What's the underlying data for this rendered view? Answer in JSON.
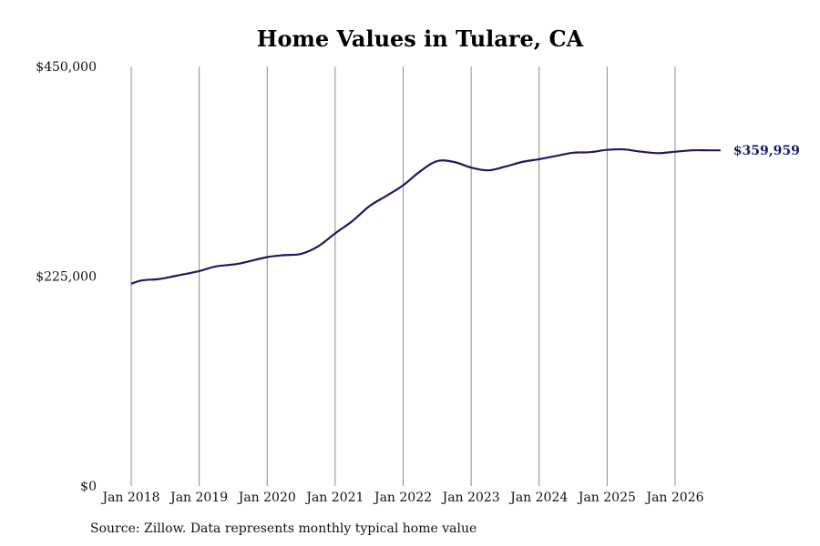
{
  "chart_data": {
    "type": "line",
    "title": "Home Values in Tulare, CA",
    "xlabel": "",
    "ylabel": "",
    "ylim": [
      0,
      450000
    ],
    "y_ticks": [
      {
        "value": 0,
        "label": "$0"
      },
      {
        "value": 225000,
        "label": "$225,000"
      },
      {
        "value": 450000,
        "label": "$450,000"
      }
    ],
    "x_ticks": [
      {
        "value": "2018-01",
        "label": "Jan 2018"
      },
      {
        "value": "2019-01",
        "label": "Jan 2019"
      },
      {
        "value": "2020-01",
        "label": "Jan 2020"
      },
      {
        "value": "2021-01",
        "label": "Jan 2021"
      },
      {
        "value": "2022-01",
        "label": "Jan 2022"
      },
      {
        "value": "2023-01",
        "label": "Jan 2023"
      },
      {
        "value": "2024-01",
        "label": "Jan 2024"
      },
      {
        "value": "2025-01",
        "label": "Jan 2025"
      },
      {
        "value": "2026-01",
        "label": "Jan 2026"
      }
    ],
    "grid": {
      "x": true,
      "y": false
    },
    "series": [
      {
        "color": "#1a1a66",
        "end_label": "$359,959",
        "points": [
          {
            "x": "2018-01",
            "y": 217000
          },
          {
            "x": "2018-03",
            "y": 220500
          },
          {
            "x": "2018-06",
            "y": 222000
          },
          {
            "x": "2018-09",
            "y": 225500
          },
          {
            "x": "2019-01",
            "y": 230500
          },
          {
            "x": "2019-04",
            "y": 235500
          },
          {
            "x": "2019-08",
            "y": 238500
          },
          {
            "x": "2020-01",
            "y": 245500
          },
          {
            "x": "2020-04",
            "y": 247500
          },
          {
            "x": "2020-07",
            "y": 249000
          },
          {
            "x": "2020-10",
            "y": 257000
          },
          {
            "x": "2021-01",
            "y": 271000
          },
          {
            "x": "2021-04",
            "y": 284000
          },
          {
            "x": "2021-07",
            "y": 300000
          },
          {
            "x": "2021-10",
            "y": 311000
          },
          {
            "x": "2022-01",
            "y": 322500
          },
          {
            "x": "2022-04",
            "y": 337500
          },
          {
            "x": "2022-07",
            "y": 348500
          },
          {
            "x": "2022-10",
            "y": 347500
          },
          {
            "x": "2023-01",
            "y": 341500
          },
          {
            "x": "2023-04",
            "y": 338500
          },
          {
            "x": "2023-07",
            "y": 342500
          },
          {
            "x": "2023-10",
            "y": 347500
          },
          {
            "x": "2024-01",
            "y": 350500
          },
          {
            "x": "2024-04",
            "y": 354000
          },
          {
            "x": "2024-07",
            "y": 357500
          },
          {
            "x": "2024-10",
            "y": 358000
          },
          {
            "x": "2025-01",
            "y": 360500
          },
          {
            "x": "2025-04",
            "y": 361000
          },
          {
            "x": "2025-07",
            "y": 358500
          },
          {
            "x": "2025-10",
            "y": 357000
          },
          {
            "x": "2026-01",
            "y": 358500
          },
          {
            "x": "2026-04",
            "y": 360000
          },
          {
            "x": "2026-07",
            "y": 360000
          },
          {
            "x": "2026-09",
            "y": 359959
          }
        ]
      }
    ]
  },
  "source_note": "Source: Zillow. Data represents monthly typical home value"
}
